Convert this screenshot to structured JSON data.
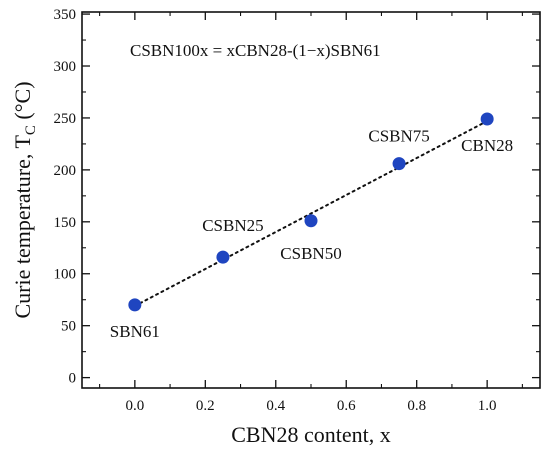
{
  "chart_data": {
    "type": "scatter",
    "title": "",
    "annotation": "CSBN100x = xCBN28-(1−x)SBN61",
    "xlabel": "CBN28 content, x",
    "ylabel_main": "Curie temperature, T",
    "ylabel_sub": "C",
    "ylabel_unit": " (°C)",
    "xlim": [
      -0.15,
      1.15
    ],
    "ylim": [
      -10,
      352
    ],
    "x_ticks": [
      0.0,
      0.2,
      0.4,
      0.6,
      0.8,
      1.0
    ],
    "x_tick_labels": [
      "0.0",
      "0.2",
      "0.4",
      "0.6",
      "0.8",
      "1.0"
    ],
    "y_ticks": [
      0,
      50,
      100,
      150,
      200,
      250,
      300,
      350
    ],
    "y_tick_labels": [
      "0",
      "50",
      "100",
      "150",
      "200",
      "250",
      "300",
      "350"
    ],
    "grid": false,
    "series": [
      {
        "x": [
          0.0,
          0.25,
          0.5,
          0.75,
          1.0
        ],
        "y": [
          70,
          116,
          151,
          206,
          249
        ],
        "point_labels": [
          "SBN61",
          "CSBN25",
          "CSBN50",
          "CSBN75",
          "CBN28"
        ],
        "color": "#1f45c0"
      }
    ],
    "fit_line": {
      "x": [
        0.0,
        1.0
      ],
      "y": [
        69,
        247
      ],
      "style": "dotted",
      "color": "#111111"
    }
  }
}
